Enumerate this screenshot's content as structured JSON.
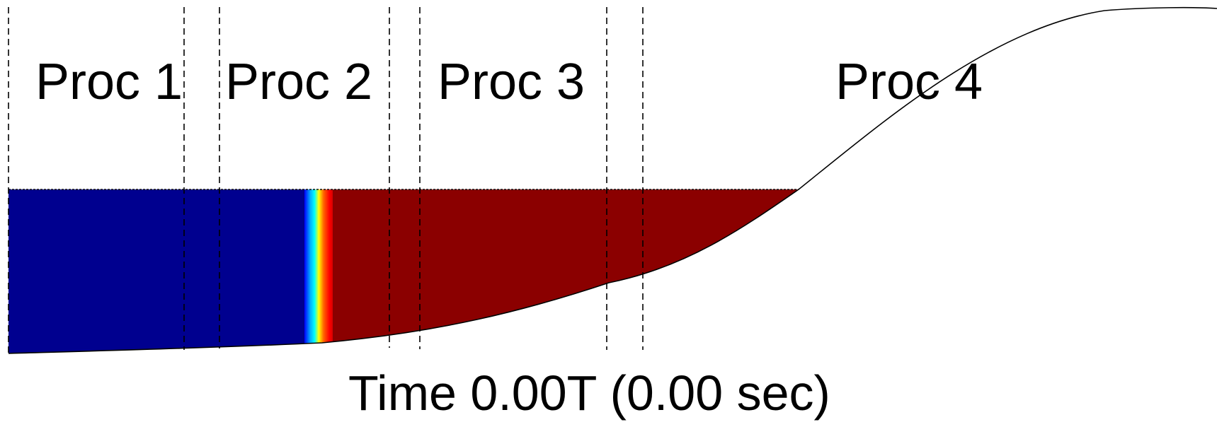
{
  "processors": [
    {
      "id": "proc-1",
      "label": "Proc 1"
    },
    {
      "id": "proc-2",
      "label": "Proc 2"
    },
    {
      "id": "proc-3",
      "label": "Proc 3"
    },
    {
      "id": "proc-4",
      "label": "Proc 4"
    }
  ],
  "time_label": "Time 0.00T (0.00 sec)",
  "colors": {
    "left_fluid": "#00008f",
    "right_fluid": "#8b0000",
    "interface_band": [
      "#0000ff",
      "#00aaff",
      "#00ffff",
      "#ffff00",
      "#ff6600",
      "#ff0000",
      "#b00000"
    ],
    "divider": "#000000",
    "background": "#ffffff"
  }
}
